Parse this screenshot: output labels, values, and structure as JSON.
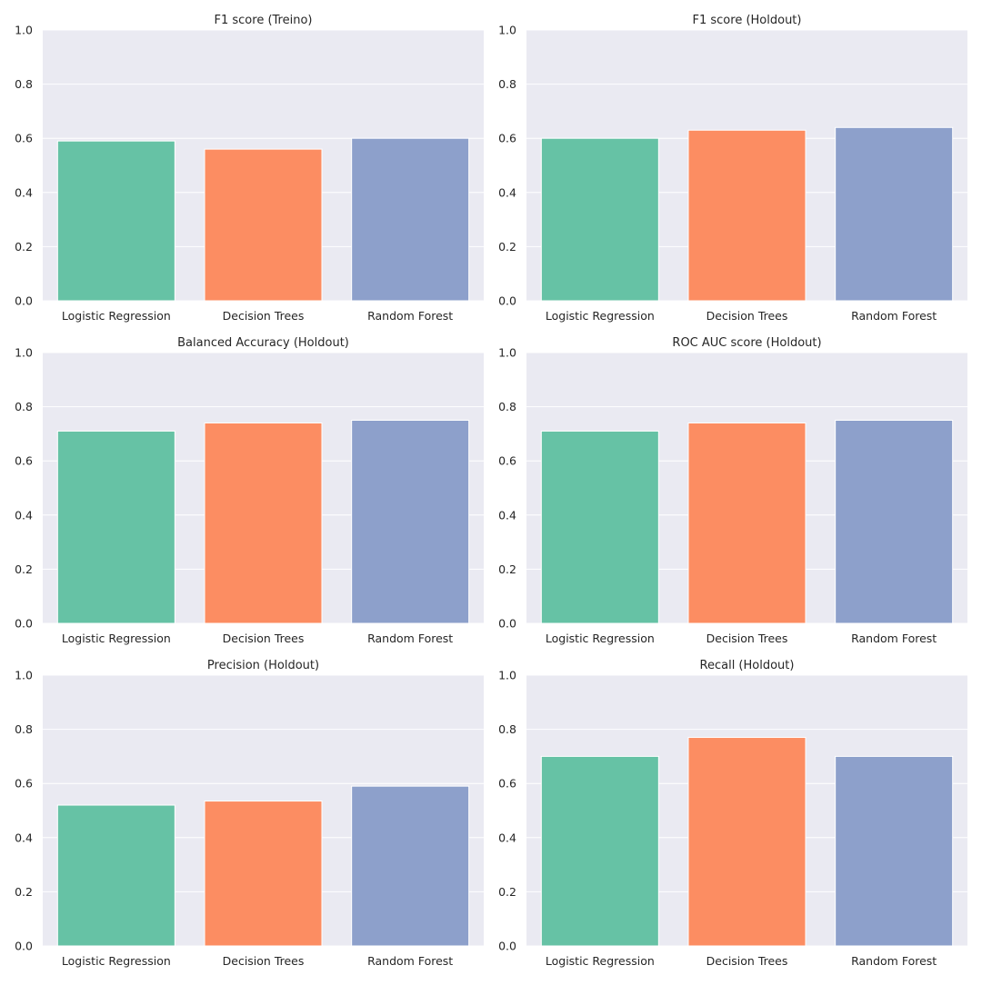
{
  "chart_data": [
    {
      "type": "bar",
      "title": "F1 score (Treino)",
      "categories": [
        "Logistic Regression",
        "Decision Trees",
        "Random Forest"
      ],
      "values": [
        0.59,
        0.56,
        0.6
      ],
      "ylim": [
        0,
        1
      ],
      "yticks": [
        "0.0",
        "0.2",
        "0.4",
        "0.6",
        "0.8",
        "1.0"
      ],
      "xlabel": "",
      "ylabel": "",
      "grid": true
    },
    {
      "type": "bar",
      "title": "F1 score (Holdout)",
      "categories": [
        "Logistic Regression",
        "Decision Trees",
        "Random Forest"
      ],
      "values": [
        0.6,
        0.63,
        0.64
      ],
      "ylim": [
        0,
        1
      ],
      "yticks": [
        "0.0",
        "0.2",
        "0.4",
        "0.6",
        "0.8",
        "1.0"
      ],
      "xlabel": "",
      "ylabel": "",
      "grid": true
    },
    {
      "type": "bar",
      "title": "Balanced Accuracy (Holdout)",
      "categories": [
        "Logistic Regression",
        "Decision Trees",
        "Random Forest"
      ],
      "values": [
        0.71,
        0.74,
        0.75
      ],
      "ylim": [
        0,
        1
      ],
      "yticks": [
        "0.0",
        "0.2",
        "0.4",
        "0.6",
        "0.8",
        "1.0"
      ],
      "xlabel": "",
      "ylabel": "",
      "grid": true
    },
    {
      "type": "bar",
      "title": "ROC AUC score (Holdout)",
      "categories": [
        "Logistic Regression",
        "Decision Trees",
        "Random Forest"
      ],
      "values": [
        0.71,
        0.74,
        0.75
      ],
      "ylim": [
        0,
        1
      ],
      "yticks": [
        "0.0",
        "0.2",
        "0.4",
        "0.6",
        "0.8",
        "1.0"
      ],
      "xlabel": "",
      "ylabel": "",
      "grid": true
    },
    {
      "type": "bar",
      "title": "Precision (Holdout)",
      "categories": [
        "Logistic Regression",
        "Decision Trees",
        "Random Forest"
      ],
      "values": [
        0.52,
        0.535,
        0.59
      ],
      "ylim": [
        0,
        1
      ],
      "yticks": [
        "0.0",
        "0.2",
        "0.4",
        "0.6",
        "0.8",
        "1.0"
      ],
      "xlabel": "",
      "ylabel": "",
      "grid": true
    },
    {
      "type": "bar",
      "title": "Recall (Holdout)",
      "categories": [
        "Logistic Regression",
        "Decision Trees",
        "Random Forest"
      ],
      "values": [
        0.7,
        0.77,
        0.7
      ],
      "ylim": [
        0,
        1
      ],
      "yticks": [
        "0.0",
        "0.2",
        "0.4",
        "0.6",
        "0.8",
        "1.0"
      ],
      "xlabel": "",
      "ylabel": "",
      "grid": true
    }
  ],
  "style": {
    "bar_colors": [
      "#66c2a5",
      "#fc8d62",
      "#8da0cb"
    ],
    "axes_background": "#eaeaf2",
    "grid_color": "#ffffff"
  }
}
